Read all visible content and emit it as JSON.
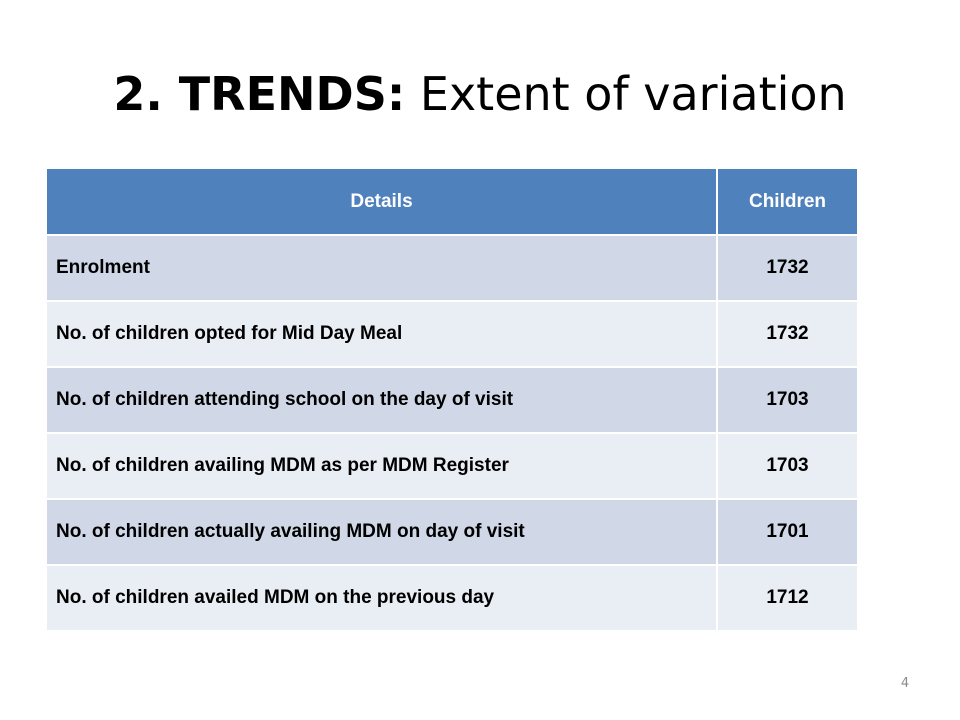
{
  "title": {
    "bold_part": "2. TRENDS:",
    "rest": "Extent of variation"
  },
  "table": {
    "headers": [
      "Details",
      "Children"
    ],
    "rows": [
      {
        "details": "Enrolment",
        "children": "1732"
      },
      {
        "details": "No. of children opted for Mid Day Meal",
        "children": "1732"
      },
      {
        "details": "No. of children attending school on the day of visit",
        "children": "1703"
      },
      {
        "details": "No. of children availing MDM as per MDM Register",
        "children": "1703"
      },
      {
        "details": "No. of children actually availing MDM on day of visit",
        "children": "1701"
      },
      {
        "details": "No. of children availed MDM on the previous day",
        "children": "1712"
      }
    ]
  },
  "colors": {
    "header_bg": "#4f81bd",
    "row_dark": "#d0d8e8",
    "row_light": "#e9edf4"
  },
  "page_number": "4"
}
